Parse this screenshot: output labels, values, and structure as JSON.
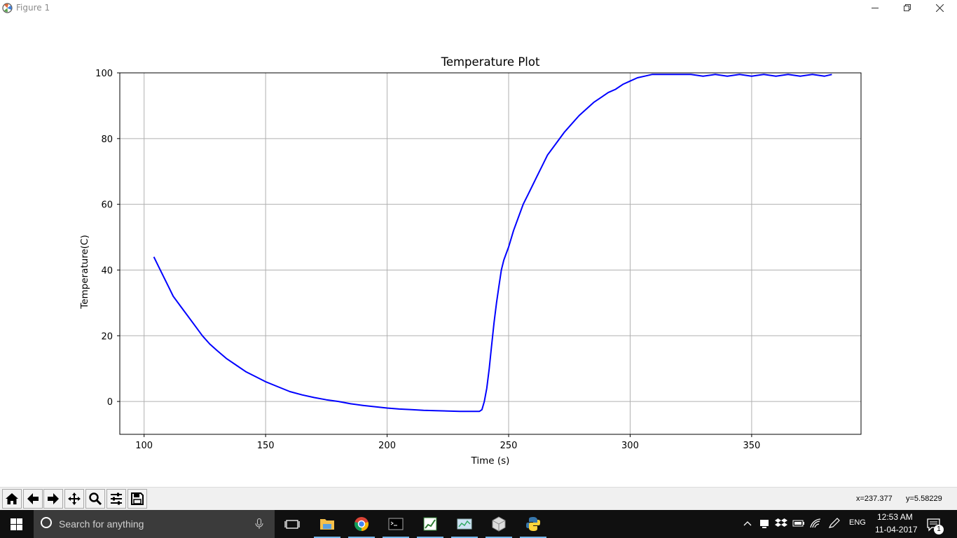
{
  "window": {
    "title": "Figure 1"
  },
  "chart_data": {
    "type": "line",
    "title": "Temperature Plot",
    "xlabel": "Time (s)",
    "ylabel": "Temperature(C)",
    "xlim": [
      90,
      395
    ],
    "ylim": [
      -10,
      100
    ],
    "xticks": [
      100,
      150,
      200,
      250,
      300,
      350
    ],
    "yticks": [
      0,
      20,
      40,
      60,
      80,
      100
    ],
    "grid": true,
    "line_color": "#0000ff",
    "series": [
      {
        "x": [
          104,
          106,
          108,
          110,
          112,
          115,
          118,
          121,
          124,
          127,
          130,
          134,
          138,
          142,
          146,
          150,
          155,
          160,
          165,
          170,
          175,
          180,
          185,
          190,
          195,
          200,
          205,
          210,
          215,
          220,
          225,
          230,
          235,
          238,
          239,
          240,
          241,
          242,
          243,
          244,
          245,
          246,
          247,
          248,
          249,
          250,
          252,
          254,
          256,
          258,
          260,
          262,
          264,
          266,
          268,
          270,
          273,
          276,
          279,
          282,
          285,
          288,
          291,
          294,
          297,
          300,
          303,
          306,
          309,
          312,
          316,
          320,
          325,
          330,
          335,
          340,
          345,
          350,
          355,
          360,
          365,
          370,
          375,
          380,
          383
        ],
        "y": [
          44,
          41,
          38,
          35,
          32,
          29,
          26,
          23,
          20,
          17.5,
          15.5,
          13,
          11,
          9,
          7.5,
          6,
          4.5,
          3,
          2,
          1.2,
          0.5,
          0,
          -0.7,
          -1.2,
          -1.6,
          -2,
          -2.3,
          -2.5,
          -2.7,
          -2.8,
          -2.9,
          -3,
          -3,
          -3,
          -2.5,
          0,
          4,
          10,
          17,
          24,
          30,
          35,
          40,
          43,
          45,
          47,
          52,
          56,
          60,
          63,
          66,
          69,
          72,
          75,
          77,
          79,
          82,
          84.5,
          87,
          89,
          91,
          92.5,
          94,
          95,
          96.5,
          97.5,
          98.5,
          99,
          99.5,
          99.5,
          99.5,
          99.5,
          99.5,
          99,
          99.5,
          99,
          99.5,
          99,
          99.5,
          99,
          99.5,
          99,
          99.5,
          99,
          99.5
        ]
      }
    ]
  },
  "toolbar": {
    "buttons": [
      "home-icon",
      "back-icon",
      "forward-icon",
      "pan-icon",
      "zoom-icon",
      "configure-subplots-icon",
      "save-icon"
    ],
    "coord_x": "x=237.377",
    "coord_y": "y=5.58229"
  },
  "taskbar": {
    "search_placeholder": "Search for anything",
    "language": "ENG",
    "time": "12:53 AM",
    "date": "11-04-2017",
    "notification_count": "1"
  }
}
